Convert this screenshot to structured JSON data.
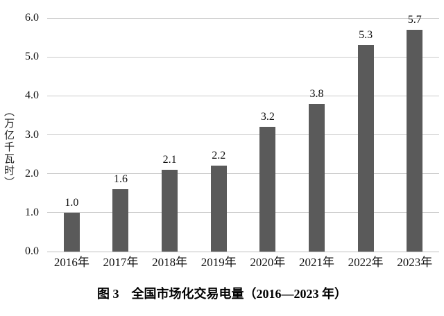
{
  "chart_data": {
    "type": "bar",
    "title": "图 3　全国市场化交易电量（2016—2023 年）",
    "ylabel": "（万亿千瓦时）",
    "xlabel": "",
    "categories": [
      "2016年",
      "2017年",
      "2018年",
      "2019年",
      "2020年",
      "2021年",
      "2022年",
      "2023年"
    ],
    "values": [
      1.0,
      1.6,
      2.1,
      2.2,
      3.2,
      3.8,
      5.3,
      5.7
    ],
    "value_labels": [
      "1.0",
      "1.6",
      "2.1",
      "2.2",
      "3.2",
      "3.8",
      "5.3",
      "5.7"
    ],
    "ylim": [
      0.0,
      6.0
    ],
    "ytick_labels": [
      "0.0",
      "1.0",
      "2.0",
      "3.0",
      "4.0",
      "5.0",
      "6.0"
    ],
    "grid": "horizontal",
    "legend": "none",
    "bar_color": "#5a5a5a",
    "gridline_color": "#c9c9c9",
    "axis_line_color": "#bfbfbf",
    "text_color": "#111111",
    "background_color": "#ffffff"
  }
}
